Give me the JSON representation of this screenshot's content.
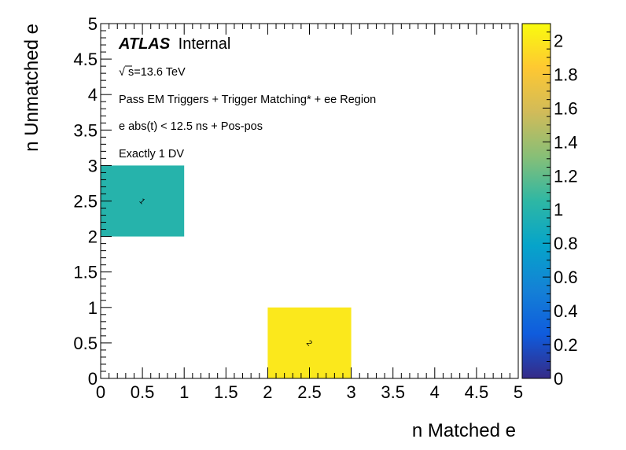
{
  "chart_data": {
    "type": "heatmap",
    "xlabel": "n Matched e",
    "ylabel": "n Unmatched e",
    "xlim": [
      0,
      5
    ],
    "ylim": [
      0,
      5
    ],
    "x_ticks": [
      "0",
      "0.5",
      "1",
      "1.5",
      "2",
      "2.5",
      "3",
      "3.5",
      "4",
      "4.5",
      "5"
    ],
    "y_ticks": [
      "0",
      "0.5",
      "1",
      "1.5",
      "2",
      "2.5",
      "3",
      "3.5",
      "4",
      "4.5",
      "5"
    ],
    "x_tick_values": [
      0,
      0.5,
      1,
      1.5,
      2,
      2.5,
      3,
      3.5,
      4,
      4.5,
      5
    ],
    "y_tick_values": [
      0,
      0.5,
      1,
      1.5,
      2,
      2.5,
      3,
      3.5,
      4,
      4.5,
      5
    ],
    "bin_width": 1,
    "cells": [
      {
        "x": 0,
        "y": 2,
        "value": 1,
        "label": "1"
      },
      {
        "x": 2,
        "y": 0,
        "value": 2,
        "label": "2"
      }
    ],
    "colorbar": {
      "min": 0,
      "max": 2.1,
      "ticks": [
        "0",
        "0.2",
        "0.4",
        "0.6",
        "0.8",
        "1",
        "1.2",
        "1.4",
        "1.6",
        "1.8",
        "2"
      ],
      "tick_values": [
        0,
        0.2,
        0.4,
        0.6,
        0.8,
        1,
        1.2,
        1.4,
        1.6,
        1.8,
        2
      ],
      "palette": [
        "#352a87",
        "#0f5cdd",
        "#1481d6",
        "#06a4ca",
        "#2eb7a4",
        "#87bf77",
        "#d1bb59",
        "#fec832",
        "#f9fb0e"
      ]
    },
    "annotations": {
      "atlas": "ATLAS",
      "atlas_suffix": "Internal",
      "sqrt_symbol": "√",
      "energy": "s=13.6 TeV",
      "line1": "Pass EM Triggers + Trigger Matching* + ee Region",
      "line2": "e abs(t) < 12.5 ns + Pos-pos",
      "line3": "Exactly 1 DV"
    }
  }
}
